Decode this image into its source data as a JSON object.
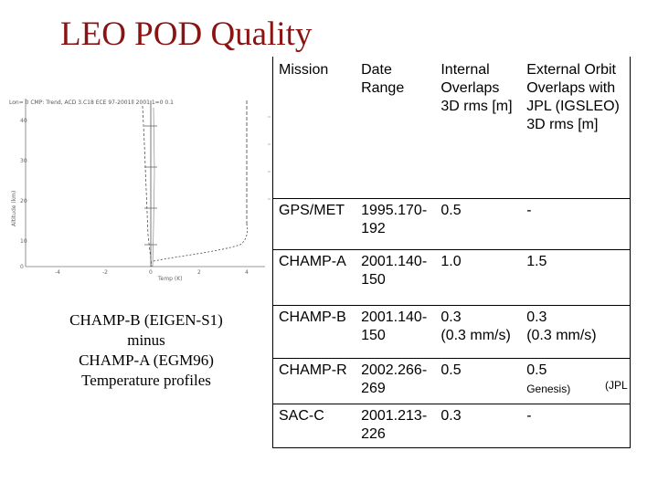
{
  "title": "LEO POD Quality",
  "caption": [
    "CHAMP-B (EIGEN-S1)",
    "minus",
    "CHAMP-A (EGM96)",
    "Temperature profiles"
  ],
  "table": {
    "headers": [
      [
        "Mission"
      ],
      [
        "Date",
        "Range"
      ],
      [
        "Internal",
        "Overlaps",
        "3D rms [m]"
      ],
      [
        "External Orbit",
        "Overlaps  with",
        "JPL (IGSLEO)",
        "3D rms [m]"
      ]
    ],
    "rows": [
      {
        "mission": "GPS/MET",
        "date": [
          "1995.170-",
          "192"
        ],
        "internal": [
          "0.5"
        ],
        "external": [
          "-"
        ]
      },
      {
        "mission": "CHAMP-A",
        "date": [
          "2001.140-",
          "150"
        ],
        "internal": [
          "1.0"
        ],
        "external": [
          "1.5"
        ]
      },
      {
        "mission": "CHAMP-B",
        "date": [
          "2001.140-",
          "150"
        ],
        "internal": [
          "0.3",
          "(0.3 mm/s)"
        ],
        "external": [
          "0.3",
          "(0.3 mm/s)"
        ]
      },
      {
        "mission": "CHAMP-R",
        "date": [
          "2002.266-",
          "269"
        ],
        "internal": [
          "0.5"
        ],
        "external": [
          "0.5"
        ],
        "external_note": "Genesis)",
        "note": "(JPL"
      },
      {
        "mission": "SAC-C",
        "date": [
          "2001.213-",
          "226"
        ],
        "internal": [
          "0.3"
        ],
        "external": [
          "-"
        ]
      }
    ]
  },
  "plot": {
    "header_text": "Lon=  0 CMP: Trend, ACD 3.C18  ECE 97-2001ll  2001.1=0  0.1",
    "left_tick_labels": [
      "40",
      "30",
      "20",
      "10",
      "0"
    ],
    "ylabel": "Altitude (km)",
    "bottom_labels": [
      "-4",
      "-2",
      "0",
      "2",
      "4"
    ],
    "xlabel": "Temp (K)"
  }
}
